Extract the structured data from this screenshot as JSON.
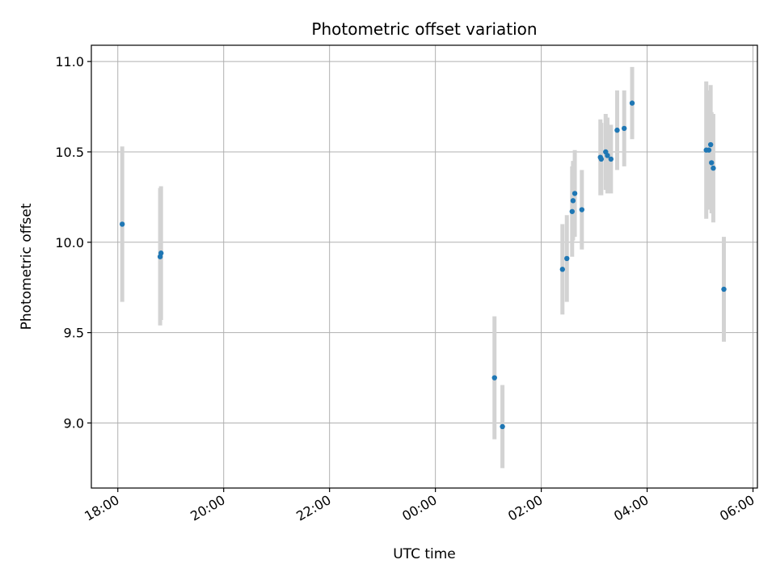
{
  "chart_data": {
    "type": "scatter",
    "title": "Photometric offset variation",
    "xlabel": "UTC time",
    "ylabel": "Photometric offset",
    "grid": true,
    "xlim": [
      "17:30",
      "06:05"
    ],
    "ylim": [
      8.64,
      11.09
    ],
    "x_ticks": [
      "18:00",
      "20:00",
      "22:00",
      "00:00",
      "02:00",
      "04:00",
      "06:00"
    ],
    "y_ticks": [
      "9.0",
      "9.5",
      "10.0",
      "10.5",
      "11.0"
    ],
    "colors": {
      "point": "#1f77b4",
      "errorbar": "#d3d3d3"
    },
    "points": [
      {
        "time": "18:05",
        "y": 10.1,
        "err": 0.43
      },
      {
        "time": "18:48",
        "y": 9.92,
        "err": 0.38
      },
      {
        "time": "18:49",
        "y": 9.94,
        "err": 0.37
      },
      {
        "time": "01:07",
        "y": 9.25,
        "err": 0.34
      },
      {
        "time": "01:16",
        "y": 8.98,
        "err": 0.23
      },
      {
        "time": "02:24",
        "y": 9.85,
        "err": 0.25
      },
      {
        "time": "02:29",
        "y": 9.91,
        "err": 0.24
      },
      {
        "time": "02:35",
        "y": 10.17,
        "err": 0.25
      },
      {
        "time": "02:36",
        "y": 10.23,
        "err": 0.22
      },
      {
        "time": "02:38",
        "y": 10.27,
        "err": 0.24
      },
      {
        "time": "02:46",
        "y": 10.18,
        "err": 0.22
      },
      {
        "time": "03:07",
        "y": 10.47,
        "err": 0.21
      },
      {
        "time": "03:08",
        "y": 10.46,
        "err": 0.2
      },
      {
        "time": "03:13",
        "y": 10.5,
        "err": 0.21
      },
      {
        "time": "03:15",
        "y": 10.48,
        "err": 0.21
      },
      {
        "time": "03:19",
        "y": 10.46,
        "err": 0.19
      },
      {
        "time": "03:26",
        "y": 10.62,
        "err": 0.22
      },
      {
        "time": "03:34",
        "y": 10.63,
        "err": 0.21
      },
      {
        "time": "03:43",
        "y": 10.77,
        "err": 0.2
      },
      {
        "time": "05:07",
        "y": 10.51,
        "err": 0.38
      },
      {
        "time": "05:10",
        "y": 10.51,
        "err": 0.33
      },
      {
        "time": "05:12",
        "y": 10.54,
        "err": 0.33
      },
      {
        "time": "05:13",
        "y": 10.44,
        "err": 0.28
      },
      {
        "time": "05:15",
        "y": 10.41,
        "err": 0.3
      },
      {
        "time": "05:27",
        "y": 9.74,
        "err": 0.29
      }
    ]
  }
}
